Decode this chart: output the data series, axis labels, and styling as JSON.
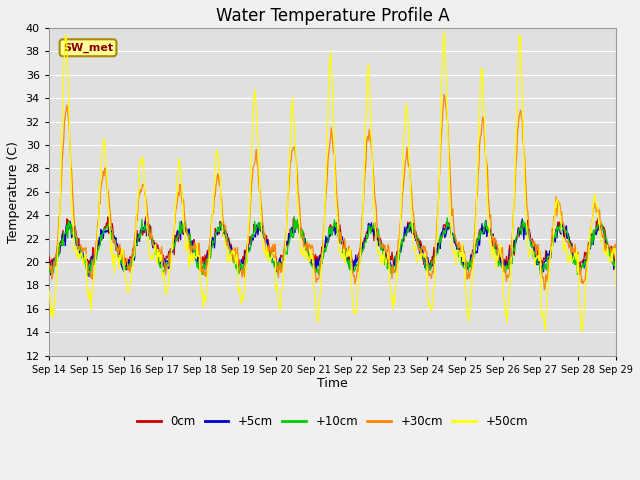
{
  "title": "Water Temperature Profile A",
  "xlabel": "Time",
  "ylabel": "Temperature (C)",
  "ylim": [
    12,
    40
  ],
  "yticks": [
    12,
    14,
    16,
    18,
    20,
    22,
    24,
    26,
    28,
    30,
    32,
    34,
    36,
    38,
    40
  ],
  "n_days": 15,
  "xtick_labels": [
    "Sep 14",
    "Sep 15",
    "Sep 16",
    "Sep 17",
    "Sep 18",
    "Sep 19",
    "Sep 20",
    "Sep 21",
    "Sep 22",
    "Sep 23",
    "Sep 24",
    "Sep 25",
    "Sep 26",
    "Sep 27",
    "Sep 28",
    "Sep 29"
  ],
  "legend_labels": [
    "0cm",
    "+5cm",
    "+10cm",
    "+30cm",
    "+50cm"
  ],
  "legend_colors": [
    "#cc0000",
    "#0000cc",
    "#00cc00",
    "#ff8800",
    "#ffff00"
  ],
  "annotation_text": "SW_met",
  "annotation_bg": "#ffff99",
  "annotation_border": "#aa8800",
  "plot_bg": "#e0e0e0",
  "fig_bg": "#f0f0f0",
  "grid_color": "#ffffff",
  "title_fontsize": 12,
  "tick_fontsize": 7,
  "ylabel_fontsize": 9,
  "xlabel_fontsize": 9
}
